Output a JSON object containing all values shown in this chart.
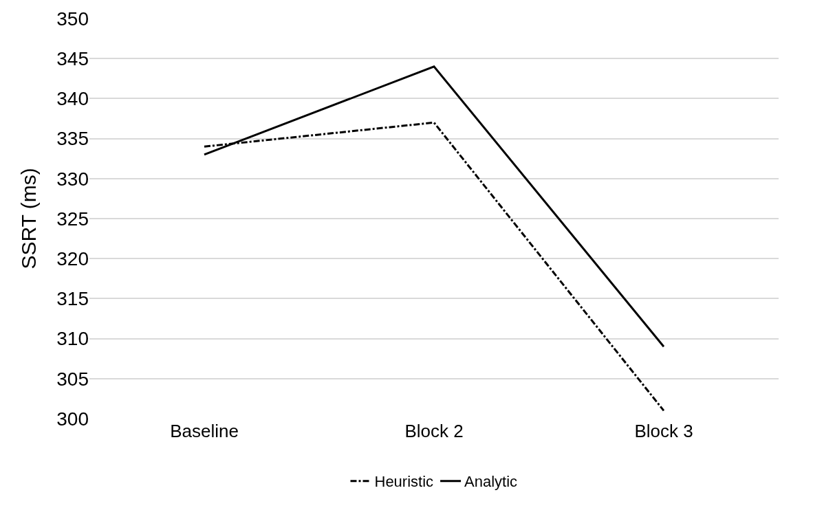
{
  "chart_data": {
    "type": "line",
    "ylabel": "SSRT (ms)",
    "categories": [
      "Baseline",
      "Block 2",
      "Block 3"
    ],
    "series": [
      {
        "name": "Heuristic",
        "color": "#000000",
        "line_style": "dashdot",
        "values": [
          334,
          337,
          301
        ]
      },
      {
        "name": "Analytic",
        "color": "#000000",
        "line_style": "solid",
        "values": [
          333,
          344,
          309
        ]
      }
    ],
    "ylim": [
      300,
      350
    ],
    "yticks": [
      300,
      305,
      310,
      315,
      320,
      325,
      330,
      335,
      340,
      345,
      350
    ],
    "grid": "y",
    "legend": "bottom",
    "marker": "none"
  }
}
